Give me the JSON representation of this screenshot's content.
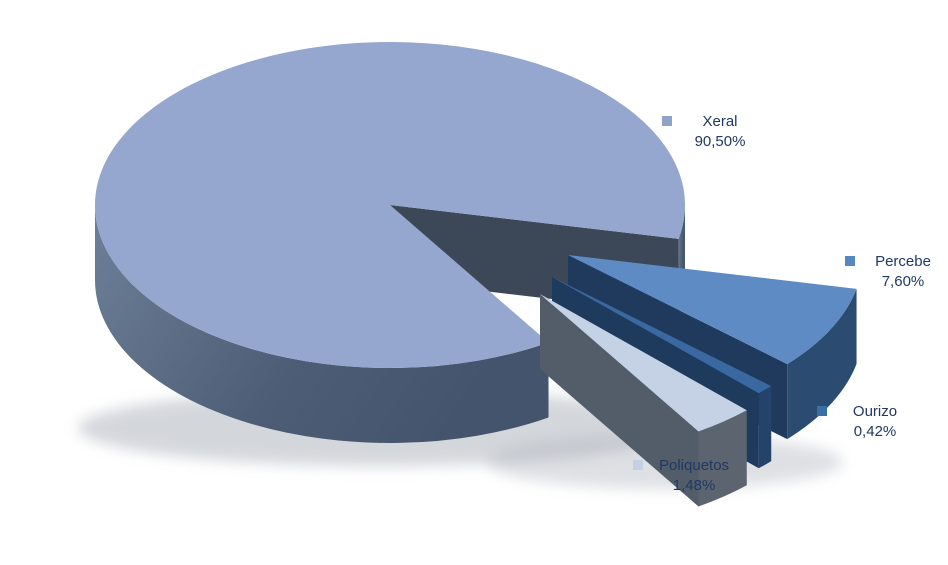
{
  "page": {
    "background": "#FFFFFF"
  },
  "chart_data": {
    "type": "pie",
    "style": "3d-exploded",
    "title": "",
    "legend_position": "outside-data-labels",
    "number_format": "percent-comma-decimals",
    "text_color": "#1F3864",
    "shadow_color": "#A9AFB8",
    "slices": [
      {
        "label": "Xeral",
        "value": 90.5,
        "display": "90,50%",
        "exploded": false,
        "color": "#95A7CF",
        "side_color": "#3C4858",
        "rim_color": "#4D5D75",
        "marker_color": "#8FA3C8"
      },
      {
        "label": "Percebe",
        "value": 7.6,
        "display": "7,60%",
        "exploded": true,
        "color": "#5E8BC4",
        "side_color": "#1F3A5C",
        "rim_color": "#2B4B71",
        "marker_color": "#5588BF"
      },
      {
        "label": "Ourizo",
        "value": 0.42,
        "display": "0,42%",
        "exploded": true,
        "color": "#3A68A0",
        "side_color": "#1E3A5C",
        "rim_color": "#24426A",
        "marker_color": "#3A6FA5"
      },
      {
        "label": "Poliquetos",
        "value": 1.48,
        "display": "1,48%",
        "exploded": true,
        "color": "#C5D1E5",
        "side_color": "#535D69",
        "rim_color": "#5B646F",
        "marker_color": "#C3D0E5"
      }
    ]
  }
}
